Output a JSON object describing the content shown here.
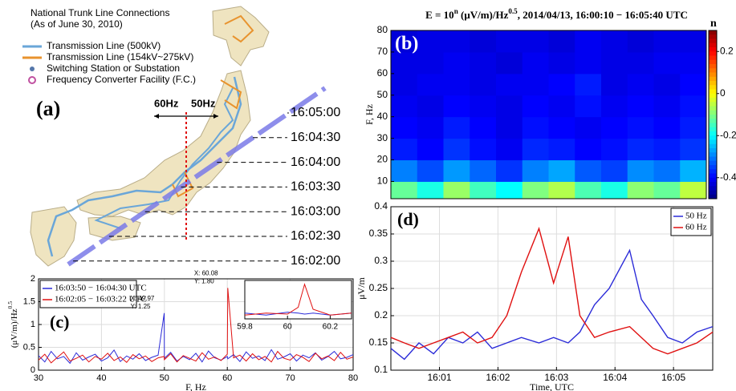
{
  "map_panel": {
    "legend_title": "National Trunk Line Connections",
    "legend_subtitle": "(As of June 30, 2010)",
    "legend_items": [
      "Transmission Line (500kV)",
      "Transmission Line (154kV~275kV)",
      "Switching Station or Substation",
      "Frequency Converter Facility (F.C.)"
    ],
    "panel_label": "(a)",
    "left_label": "60Hz",
    "right_label": "50Hz",
    "times": [
      "16:05:00",
      "16:04:30",
      "16:04:00",
      "16:03:30",
      "16:03:00",
      "16:02:30",
      "16:02:00"
    ]
  },
  "chart_data": [
    {
      "type": "heatmap",
      "panel_label": "(b)",
      "title": [
        "E = 10",
        "n",
        " (μV/m)/Hz",
        "0.5",
        ", 2014/04/13, 16:00:10 − 16:05:40 UTC"
      ],
      "ylabel": "F, Hz",
      "ylim": [
        2,
        80
      ],
      "yticks": [
        10,
        20,
        30,
        40,
        50,
        60,
        70,
        80
      ],
      "y_bins": [
        2,
        10,
        20,
        30,
        40,
        50,
        60,
        70,
        80
      ],
      "colormap": "jet",
      "colorbar_label": "n",
      "clim": [
        -0.5,
        0.3
      ],
      "cticks": [
        0.2,
        0,
        -0.2,
        -0.4
      ],
      "values": [
        [
          -0.12,
          -0.18,
          -0.08,
          -0.15,
          -0.2,
          -0.1,
          -0.06,
          -0.14,
          -0.18,
          -0.09,
          -0.12,
          -0.05
        ],
        [
          -0.3,
          -0.34,
          -0.28,
          -0.32,
          -0.36,
          -0.3,
          -0.27,
          -0.33,
          -0.35,
          -0.29,
          -0.31,
          -0.26
        ],
        [
          -0.38,
          -0.4,
          -0.36,
          -0.39,
          -0.41,
          -0.37,
          -0.38,
          -0.4,
          -0.39,
          -0.37,
          -0.38,
          -0.36
        ],
        [
          -0.4,
          -0.41,
          -0.38,
          -0.4,
          -0.42,
          -0.39,
          -0.4,
          -0.41,
          -0.4,
          -0.39,
          -0.4,
          -0.38
        ],
        [
          -0.41,
          -0.42,
          -0.4,
          -0.41,
          -0.42,
          -0.4,
          -0.41,
          -0.39,
          -0.41,
          -0.4,
          -0.41,
          -0.39
        ],
        [
          -0.42,
          -0.41,
          -0.41,
          -0.42,
          -0.41,
          -0.41,
          -0.4,
          -0.38,
          -0.42,
          -0.41,
          -0.42,
          -0.4
        ],
        [
          -0.42,
          -0.42,
          -0.41,
          -0.42,
          -0.43,
          -0.41,
          -0.42,
          -0.41,
          -0.42,
          -0.42,
          -0.41,
          -0.41
        ],
        [
          -0.43,
          -0.42,
          -0.42,
          -0.43,
          -0.42,
          -0.42,
          -0.43,
          -0.41,
          -0.42,
          -0.43,
          -0.42,
          -0.42
        ]
      ]
    },
    {
      "type": "line",
      "panel_label": "(c)",
      "xlabel": "F, Hz",
      "ylabel": [
        "(μV/m)/Hz",
        "0.5"
      ],
      "xlim": [
        30,
        80
      ],
      "xticks": [
        30,
        40,
        50,
        60,
        70,
        80
      ],
      "ylim": [
        0,
        2
      ],
      "yticks": [
        0,
        0.5,
        1,
        1.5,
        2
      ],
      "grid": true,
      "legend": "upper left",
      "x": [
        30,
        31,
        32,
        33,
        34,
        35,
        36,
        37,
        38,
        39,
        40,
        41,
        42,
        43,
        44,
        45,
        46,
        47,
        48,
        49,
        49.97,
        50,
        51,
        52,
        53,
        54,
        55,
        56,
        57,
        58,
        59,
        60,
        60.08,
        61,
        62,
        63,
        64,
        65,
        66,
        67,
        68,
        69,
        70,
        71,
        72,
        73,
        74,
        75,
        76,
        77,
        78,
        79,
        80
      ],
      "series": [
        {
          "name": "16:03:50 − 16:04:30 UTC",
          "color": "#2b2bd8",
          "values": [
            0.32,
            0.18,
            0.41,
            0.25,
            0.3,
            0.15,
            0.38,
            0.22,
            0.29,
            0.35,
            0.2,
            0.27,
            0.44,
            0.19,
            0.31,
            0.24,
            0.36,
            0.21,
            0.28,
            0.33,
            1.25,
            0.26,
            0.39,
            0.2,
            0.3,
            0.23,
            0.37,
            0.18,
            0.42,
            0.27,
            0.22,
            0.3,
            0.25,
            0.34,
            0.19,
            0.4,
            0.26,
            0.31,
            0.21,
            0.45,
            0.24,
            0.29,
            0.36,
            0.2,
            0.33,
            0.27,
            0.38,
            0.22,
            0.3,
            0.41,
            0.25,
            0.28,
            0.34
          ]
        },
        {
          "name": "16:02:05 − 16:03:22 UTC",
          "color": "#e01010",
          "values": [
            0.22,
            0.35,
            0.16,
            0.28,
            0.4,
            0.2,
            0.26,
            0.33,
            0.18,
            0.3,
            0.24,
            0.37,
            0.21,
            0.29,
            0.17,
            0.34,
            0.25,
            0.31,
            0.19,
            0.27,
            0.3,
            0.23,
            0.36,
            0.18,
            0.32,
            0.26,
            0.2,
            0.38,
            0.24,
            0.29,
            0.21,
            0.35,
            1.8,
            0.27,
            0.33,
            0.2,
            0.36,
            0.23,
            0.3,
            0.18,
            0.41,
            0.26,
            0.22,
            0.34,
            0.28,
            0.19,
            0.37,
            0.25,
            0.31,
            0.21,
            0.39,
            0.24,
            0.29
          ]
        }
      ],
      "annotations": [
        [
          "X: 49.97",
          "Y: 1.25"
        ],
        [
          "X: 60.08",
          "Y: 1.80"
        ]
      ],
      "inset": {
        "xlim": [
          59.8,
          60.3
        ],
        "xticks": [
          59.8,
          60,
          60.2
        ],
        "ylim": [
          0,
          2
        ],
        "x": [
          59.8,
          59.9,
          60.0,
          60.05,
          60.08,
          60.12,
          60.2,
          60.3
        ],
        "series": [
          {
            "values": [
              0.3,
              0.2,
              0.35,
              0.3,
              0.25,
              0.3,
              0.2,
              0.3
            ]
          },
          {
            "values": [
              0.2,
              0.3,
              0.25,
              0.6,
              1.8,
              0.5,
              0.2,
              0.3
            ]
          }
        ]
      }
    },
    {
      "type": "line",
      "panel_label": "(d)",
      "xlabel": "Time, UTC",
      "ylabel": "μV/m",
      "xlim": [
        0.17,
        5.67
      ],
      "xticks": [
        {
          "value": 1,
          "label": "16:01"
        },
        {
          "value": 2,
          "label": "16:02"
        },
        {
          "value": 3,
          "label": "16:03"
        },
        {
          "value": 4,
          "label": "16:04"
        },
        {
          "value": 5,
          "label": "16:05"
        }
      ],
      "ylim": [
        0.1,
        0.4
      ],
      "yticks": [
        0.1,
        0.15,
        0.2,
        0.25,
        0.3,
        0.35,
        0.4
      ],
      "grid": true,
      "legend": "upper right",
      "x": [
        0.17,
        0.4,
        0.65,
        0.9,
        1.15,
        1.4,
        1.65,
        1.9,
        2.15,
        2.4,
        2.7,
        2.95,
        3.2,
        3.4,
        3.65,
        3.9,
        4.25,
        4.45,
        4.65,
        4.9,
        5.15,
        5.4,
        5.67
      ],
      "series": [
        {
          "name": "50 Hz",
          "color": "#2b2bd8",
          "values": [
            0.14,
            0.12,
            0.15,
            0.13,
            0.16,
            0.15,
            0.17,
            0.14,
            0.15,
            0.16,
            0.15,
            0.16,
            0.15,
            0.17,
            0.22,
            0.25,
            0.32,
            0.23,
            0.2,
            0.16,
            0.15,
            0.17,
            0.18
          ]
        },
        {
          "name": "60 Hz",
          "color": "#e01010",
          "values": [
            0.16,
            0.15,
            0.14,
            0.15,
            0.16,
            0.17,
            0.15,
            0.16,
            0.2,
            0.28,
            0.36,
            0.26,
            0.345,
            0.2,
            0.16,
            0.17,
            0.18,
            0.16,
            0.14,
            0.13,
            0.14,
            0.15,
            0.17
          ]
        }
      ]
    }
  ]
}
